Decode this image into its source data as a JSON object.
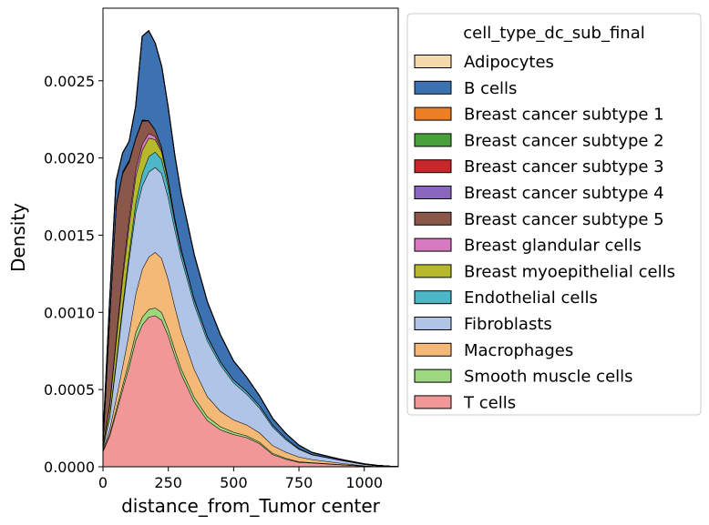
{
  "chart_data": {
    "type": "area",
    "stacked": true,
    "title": "",
    "xlabel": "distance_from_Tumor center",
    "ylabel": "Density",
    "xlim": [
      0,
      1130
    ],
    "ylim": [
      0,
      0.00297
    ],
    "xticks": [
      0,
      250,
      500,
      750,
      1000
    ],
    "xtick_labels": [
      "0",
      "250",
      "500",
      "750",
      "1000"
    ],
    "yticks": [
      0,
      0.0005,
      0.001,
      0.0015,
      0.002,
      0.0025
    ],
    "ytick_labels": [
      "0.0000",
      "0.0005",
      "0.0010",
      "0.0015",
      "0.0020",
      "0.0025"
    ],
    "grid": false,
    "legend": {
      "title": "cell_type_dc_sub_final",
      "placement": "outside-right"
    },
    "x": [
      0,
      25,
      50,
      75,
      100,
      125,
      150,
      175,
      200,
      225,
      250,
      275,
      300,
      350,
      400,
      450,
      500,
      550,
      600,
      650,
      700,
      750,
      800,
      850,
      900,
      950,
      1000,
      1050,
      1100,
      1130
    ],
    "series": [
      {
        "name": "T cells",
        "color": "#f19797",
        "values": [
          0.0001,
          0.0002,
          0.00035,
          0.0005,
          0.00065,
          0.00082,
          0.00092,
          0.00097,
          0.00098,
          0.00095,
          0.00085,
          0.00072,
          0.0006,
          0.00042,
          0.0003,
          0.00024,
          0.00021,
          0.00019,
          0.00015,
          8e-05,
          5e-05,
          3e-05,
          2.5e-05,
          2e-05,
          1.5e-05,
          1e-05,
          5e-06,
          2e-06,
          1e-06,
          0
        ]
      },
      {
        "name": "Smooth muscle cells",
        "color": "#9ed87e",
        "values": [
          5e-06,
          1e-05,
          2e-05,
          3e-05,
          4e-05,
          5e-05,
          5e-05,
          5e-05,
          5e-05,
          5e-05,
          4.5e-05,
          4e-05,
          3.5e-05,
          3e-05,
          2.5e-05,
          2e-05,
          1.5e-05,
          1.2e-05,
          1e-05,
          8e-06,
          6e-06,
          4e-06,
          3e-06,
          2e-06,
          1e-06,
          1e-06,
          0,
          0,
          0,
          0
        ]
      },
      {
        "name": "Macrophages",
        "color": "#f4b977",
        "values": [
          1e-05,
          3e-05,
          7e-05,
          0.00012,
          0.00018,
          0.00025,
          0.00031,
          0.00034,
          0.00036,
          0.00035,
          0.00032,
          0.00028,
          0.00024,
          0.00018,
          0.00013,
          0.0001,
          8e-05,
          7e-05,
          6e-05,
          5e-05,
          4e-05,
          3e-05,
          2e-05,
          1.5e-05,
          1e-05,
          5e-06,
          2e-06,
          1e-06,
          0,
          0
        ]
      },
      {
        "name": "Fibroblasts",
        "color": "#b0c4e8",
        "values": [
          1e-05,
          8e-05,
          0.00022,
          0.00037,
          0.00048,
          0.00053,
          0.00054,
          0.00055,
          0.00055,
          0.00055,
          0.00053,
          0.0005,
          0.00048,
          0.00042,
          0.00036,
          0.0003,
          0.00024,
          0.0002,
          0.00016,
          0.00012,
          8e-05,
          5e-05,
          3e-05,
          2.5e-05,
          2e-05,
          1.5e-05,
          1e-05,
          5e-06,
          2e-06,
          0
        ]
      },
      {
        "name": "Endothelial cells",
        "color": "#4db7c8",
        "values": [
          5e-06,
          1e-05,
          2e-05,
          3e-05,
          4e-05,
          6e-05,
          8e-05,
          0.0001,
          0.0001,
          9e-05,
          7e-05,
          5e-05,
          4e-05,
          3e-05,
          2.5e-05,
          2e-05,
          1.8e-05,
          1.8e-05,
          1.7e-05,
          1.4e-05,
          1e-05,
          6e-06,
          3e-06,
          2e-06,
          1e-06,
          1e-06,
          0,
          0,
          0,
          0
        ]
      },
      {
        "name": "Breast myoepithelial cells",
        "color": "#b5b92a",
        "values": [
          1e-05,
          6e-05,
          0.00013,
          0.00017,
          0.00018,
          0.00017,
          0.00015,
          0.00012,
          8e-05,
          5e-05,
          3e-05,
          1.5e-05,
          1e-05,
          5e-06,
          3e-06,
          2e-06,
          1e-06,
          1e-06,
          0,
          0,
          0,
          0,
          0,
          0,
          0,
          0,
          0,
          0,
          0,
          0
        ]
      },
      {
        "name": "Breast glandular cells",
        "color": "#d87ac2",
        "values": [
          5e-06,
          1.5e-05,
          3e-05,
          4e-05,
          4.5e-05,
          4.5e-05,
          4e-05,
          3e-05,
          2e-05,
          1.2e-05,
          8e-06,
          5e-06,
          3e-06,
          1e-06,
          1e-06,
          0,
          0,
          0,
          0,
          0,
          0,
          0,
          0,
          0,
          0,
          0,
          0,
          0,
          0,
          0
        ]
      },
      {
        "name": "Breast cancer subtype 5",
        "color": "#8b574b",
        "values": [
          3e-05,
          0.00055,
          0.00085,
          0.00064,
          0.00036,
          0.0002,
          0.00015,
          8e-05,
          4e-05,
          2e-05,
          1.2e-05,
          8e-06,
          5e-06,
          3e-06,
          2e-06,
          1e-06,
          1e-06,
          0,
          0,
          0,
          0,
          0,
          0,
          0,
          0,
          0,
          0,
          0,
          0,
          0
        ]
      },
      {
        "name": "Breast cancer subtype 4",
        "color": "#8a67bc",
        "values": [
          0,
          2e-06,
          3e-06,
          3e-06,
          3e-06,
          2e-06,
          2e-06,
          1e-06,
          1e-06,
          0,
          0,
          0,
          0,
          0,
          0,
          0,
          0,
          0,
          0,
          0,
          0,
          0,
          0,
          0,
          0,
          0,
          0,
          0,
          0,
          0
        ]
      },
      {
        "name": "Breast cancer subtype 3",
        "color": "#c8272b",
        "values": [
          0,
          2e-06,
          3e-06,
          3e-06,
          3e-06,
          2e-06,
          2e-06,
          1e-06,
          1e-06,
          0,
          0,
          0,
          0,
          0,
          0,
          0,
          0,
          0,
          0,
          0,
          0,
          0,
          0,
          0,
          0,
          0,
          0,
          0,
          0,
          0
        ]
      },
      {
        "name": "Breast cancer subtype 2",
        "color": "#47a03a",
        "values": [
          0,
          2e-06,
          3e-06,
          3e-06,
          3e-06,
          2e-06,
          2e-06,
          1e-06,
          1e-06,
          0,
          0,
          0,
          0,
          0,
          0,
          0,
          0,
          0,
          0,
          0,
          0,
          0,
          0,
          0,
          0,
          0,
          0,
          0,
          0,
          0
        ]
      },
      {
        "name": "Breast cancer subtype 1",
        "color": "#ec7e23",
        "values": [
          0,
          2e-06,
          3e-06,
          3e-06,
          3e-06,
          2e-06,
          2e-06,
          1e-06,
          1e-06,
          0,
          0,
          0,
          0,
          0,
          0,
          0,
          0,
          0,
          0,
          0,
          0,
          0,
          0,
          0,
          0,
          0,
          0,
          0,
          0,
          0
        ]
      },
      {
        "name": "B cells",
        "color": "#3d72b2",
        "values": [
          1e-05,
          0.0001,
          0.00015,
          0.00012,
          0.00012,
          0.0002,
          0.00054,
          0.00058,
          0.00056,
          0.00052,
          0.00046,
          0.0004,
          0.00035,
          0.00028,
          0.00022,
          0.00017,
          0.00012,
          9e-05,
          6e-05,
          4e-05,
          3e-05,
          2e-05,
          1.2e-05,
          8e-06,
          5e-06,
          3e-06,
          2e-06,
          1e-06,
          0,
          0
        ]
      },
      {
        "name": "Adipocytes",
        "color": "#f4d9ad",
        "values": [
          0,
          0,
          0,
          0,
          0,
          0,
          0,
          0,
          0,
          0,
          0,
          0,
          0,
          0,
          0,
          0,
          0,
          0,
          0,
          0,
          0,
          0,
          0,
          0,
          0,
          0,
          0,
          0,
          0,
          0
        ]
      }
    ],
    "legend_order": [
      "Adipocytes",
      "B cells",
      "Breast cancer subtype 1",
      "Breast cancer subtype 2",
      "Breast cancer subtype 3",
      "Breast cancer subtype 4",
      "Breast cancer subtype 5",
      "Breast glandular cells",
      "Breast myoepithelial cells",
      "Endothelial cells",
      "Fibroblasts",
      "Macrophages",
      "Smooth muscle cells",
      "T cells"
    ]
  }
}
